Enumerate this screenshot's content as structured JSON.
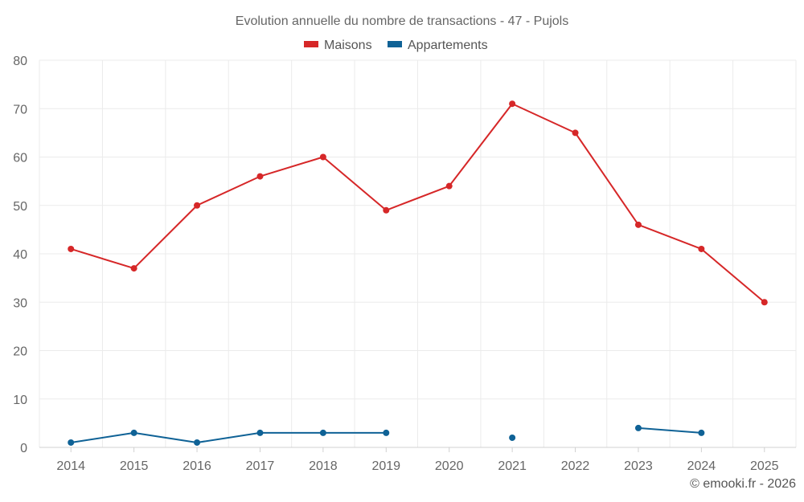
{
  "chart_data": {
    "type": "line",
    "title": "Evolution annuelle du nombre de transactions - 47 - Pujols",
    "categories": [
      "2014",
      "2015",
      "2016",
      "2017",
      "2018",
      "2019",
      "2020",
      "2021",
      "2022",
      "2023",
      "2024",
      "2025"
    ],
    "ylim": [
      0,
      80
    ],
    "yticks": [
      0,
      10,
      20,
      30,
      40,
      50,
      60,
      70,
      80
    ],
    "grid": true,
    "legend_position": "top-center",
    "series": [
      {
        "name": "Maisons",
        "color": "#d62728",
        "values": [
          41,
          37,
          50,
          56,
          60,
          49,
          54,
          71,
          65,
          46,
          41,
          30
        ]
      },
      {
        "name": "Appartements",
        "color": "#0f6296",
        "values": [
          1,
          3,
          1,
          3,
          3,
          3,
          null,
          2,
          null,
          4,
          3,
          null
        ]
      }
    ]
  },
  "credit": "© emooki.fr - 2026"
}
